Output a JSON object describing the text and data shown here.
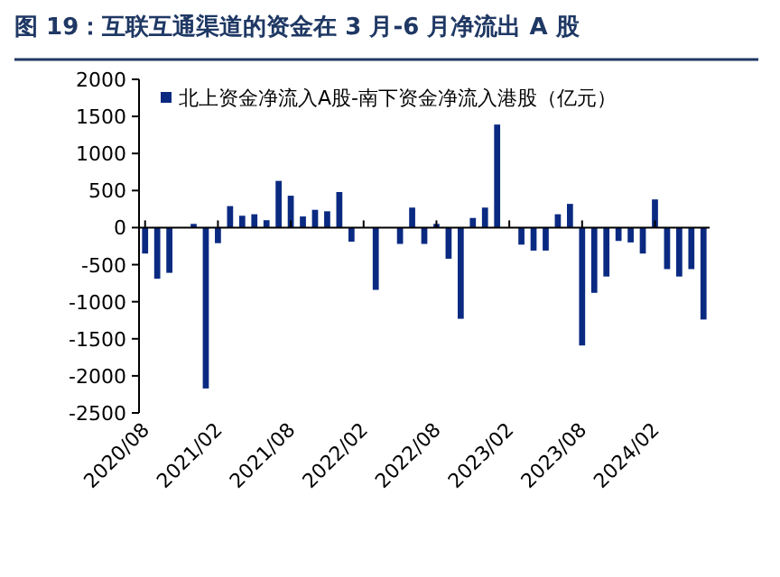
{
  "chart_data": {
    "type": "bar",
    "title": "图 19：互联互通渠道的资金在 3 月-6 月净流出 A 股",
    "categories": [
      "2020/08",
      null,
      null,
      null,
      null,
      null,
      "2021/02",
      null,
      null,
      null,
      null,
      null,
      "2021/08",
      null,
      null,
      null,
      null,
      null,
      "2022/02",
      null,
      null,
      null,
      null,
      null,
      "2022/08",
      null,
      null,
      null,
      null,
      null,
      "2023/02",
      null,
      null,
      null,
      null,
      null,
      "2023/08",
      null,
      null,
      null,
      null,
      null,
      "2024/02",
      null,
      null,
      null,
      null
    ],
    "series": [
      {
        "name": "北上资金净流入A股-南下资金净流入港股（亿元）",
        "color": "#0a2a82",
        "values": [
          -350,
          -690,
          -610,
          null,
          50,
          -2170,
          -210,
          290,
          160,
          180,
          100,
          630,
          430,
          150,
          240,
          220,
          480,
          -190,
          null,
          -840,
          null,
          -220,
          270,
          -220,
          50,
          -420,
          -1230,
          130,
          270,
          1390,
          null,
          -230,
          -310,
          -310,
          180,
          320,
          -1590,
          -880,
          -660,
          -180,
          -200,
          -350,
          380,
          -560,
          -660,
          -560,
          -1240
        ]
      }
    ],
    "ylim": [
      -2500,
      2000
    ],
    "yticks": [
      -2500,
      -2000,
      -1500,
      -1000,
      -500,
      0,
      500,
      1000,
      1500,
      2000
    ],
    "legend": "top left"
  }
}
